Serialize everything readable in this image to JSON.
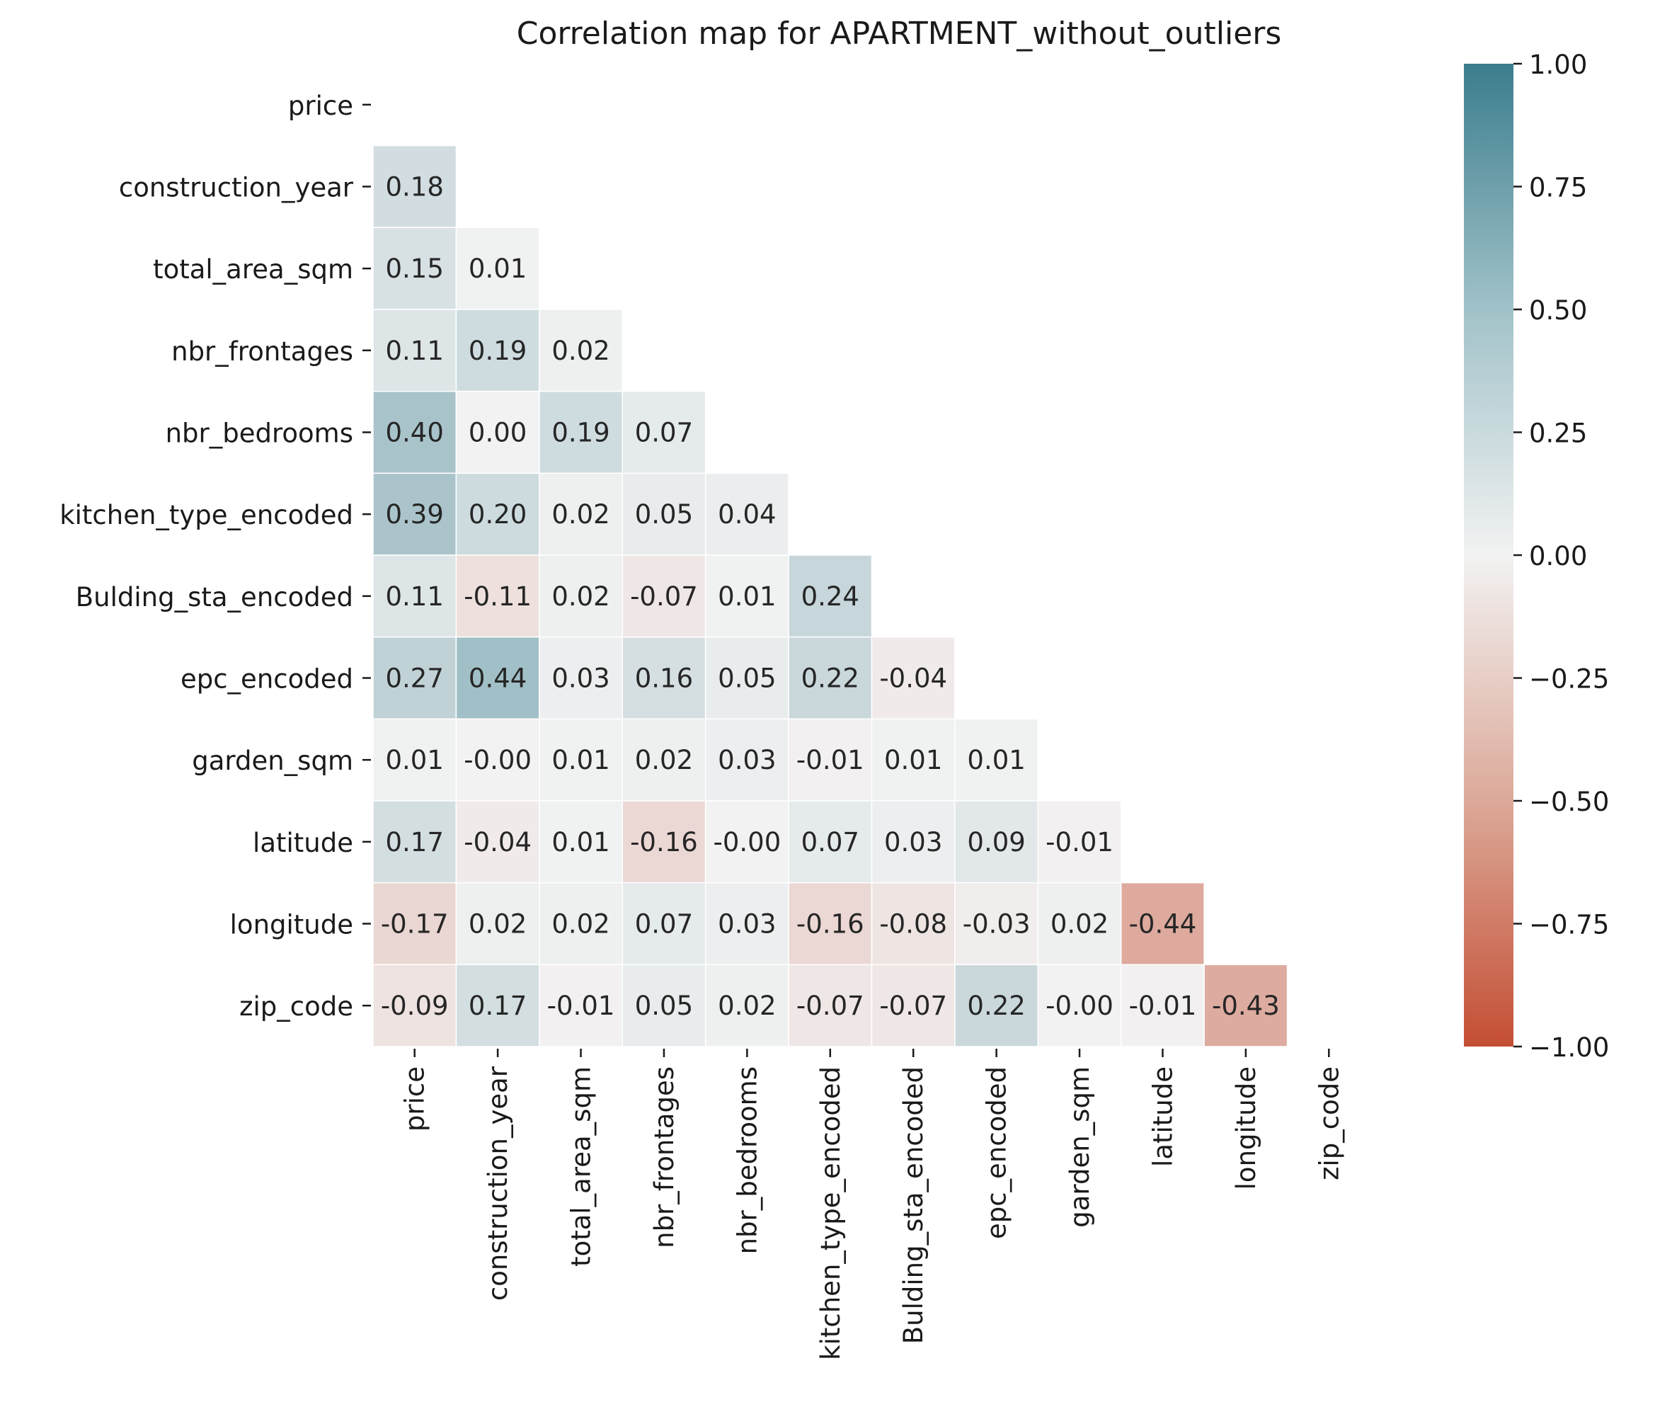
{
  "chart_data": {
    "type": "heatmap",
    "title": "Correlation map for APARTMENT_without_outliers",
    "labels": [
      "price",
      "construction_year",
      "total_area_sqm",
      "nbr_frontages",
      "nbr_bedrooms",
      "kitchen_type_encoded",
      "Bulding_sta_encoded",
      "epc_encoded",
      "garden_sqm",
      "latitude",
      "longitude",
      "zip_code"
    ],
    "cells": [
      [],
      [
        "0.18"
      ],
      [
        "0.15",
        "0.01"
      ],
      [
        "0.11",
        "0.19",
        "0.02"
      ],
      [
        "0.40",
        "0.00",
        "0.19",
        "0.07"
      ],
      [
        "0.39",
        "0.20",
        "0.02",
        "0.05",
        "0.04"
      ],
      [
        "0.11",
        "-0.11",
        "0.02",
        "-0.07",
        "0.01",
        "0.24"
      ],
      [
        "0.27",
        "0.44",
        "0.03",
        "0.16",
        "0.05",
        "0.22",
        "-0.04"
      ],
      [
        "0.01",
        "-0.00",
        "0.01",
        "0.02",
        "0.03",
        "-0.01",
        "0.01",
        "0.01"
      ],
      [
        "0.17",
        "-0.04",
        "0.01",
        "-0.16",
        "-0.00",
        "0.07",
        "0.03",
        "0.09",
        "-0.01"
      ],
      [
        "-0.17",
        "0.02",
        "0.02",
        "0.07",
        "0.03",
        "-0.16",
        "-0.08",
        "-0.03",
        "0.02",
        "-0.44"
      ],
      [
        "-0.09",
        "0.17",
        "-0.01",
        "0.05",
        "0.02",
        "-0.07",
        "-0.07",
        "0.22",
        "-0.00",
        "-0.01",
        "-0.43"
      ]
    ],
    "mask": "upper triangle including diagonal",
    "colorbar": {
      "range": [
        -1,
        1
      ],
      "ticks": [
        "1.00",
        "0.75",
        "0.50",
        "0.25",
        "0.00",
        "−0.25",
        "−0.50",
        "−0.75",
        "−1.00"
      ],
      "tick_values": [
        1,
        0.75,
        0.5,
        0.25,
        0,
        -0.25,
        -0.5,
        -0.75,
        -1
      ],
      "colors": {
        "negative": "#c44e34",
        "neutral": "#f2f2f2",
        "positive": "#3b7d8d"
      }
    },
    "grid": false
  }
}
